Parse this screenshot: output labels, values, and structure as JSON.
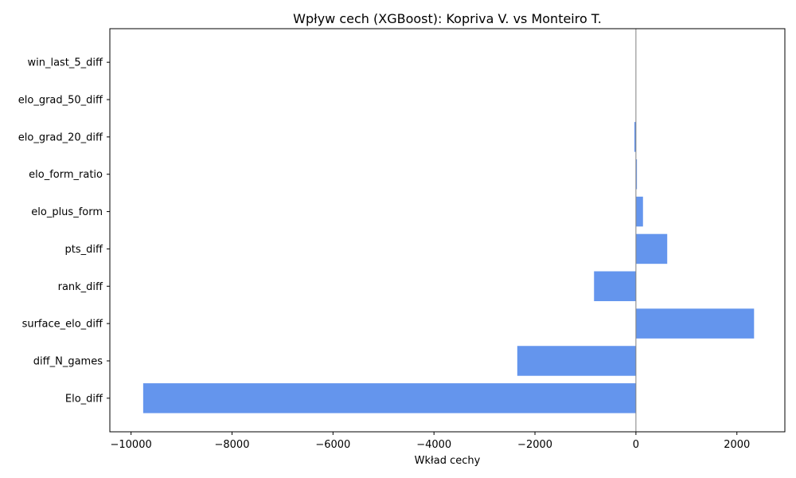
{
  "chart_data": {
    "type": "bar",
    "orientation": "horizontal",
    "title": "Wpływ cech (XGBoost): Kopriva V. vs Monteiro T.",
    "xlabel": "Wkład cechy",
    "ylabel": "",
    "categories": [
      "Elo_diff",
      "diff_N_games",
      "surface_elo_diff",
      "rank_diff",
      "pts_diff",
      "elo_plus_form",
      "elo_form_ratio",
      "elo_grad_20_diff",
      "elo_grad_50_diff",
      "win_last_5_diff"
    ],
    "values": [
      -9760,
      -2350,
      2340,
      -830,
      620,
      140,
      20,
      -30,
      0,
      0
    ],
    "xlim": [
      -10420,
      2950
    ],
    "xticks": [
      -10000,
      -8000,
      -6000,
      -4000,
      -2000,
      0,
      2000
    ],
    "xtick_labels": [
      "−10000",
      "−8000",
      "−6000",
      "−4000",
      "−2000",
      "0",
      "2000"
    ],
    "bar_color": "#6495ed",
    "zero_line": true,
    "grid": false,
    "legend": "none"
  }
}
